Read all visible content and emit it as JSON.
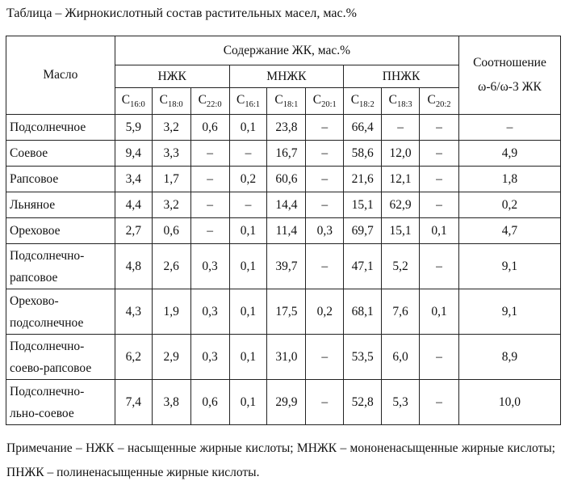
{
  "title": "Таблица – Жирнокислотный состав растительных масел, мас.%",
  "header": {
    "oil": "Масло",
    "content": "Содержание ЖК, мас.%",
    "ratio": "Соотношение ω-6/ω-3 ЖК",
    "groups": [
      "НЖК",
      "МНЖК",
      "ПНЖК"
    ],
    "acids": [
      {
        "c": "C",
        "sub": "16:0"
      },
      {
        "c": "C",
        "sub": "18:0"
      },
      {
        "c": "C",
        "sub": "22:0"
      },
      {
        "c": "C",
        "sub": "16:1"
      },
      {
        "c": "C",
        "sub": "18:1"
      },
      {
        "c": "C",
        "sub": "20:1"
      },
      {
        "c": "C",
        "sub": "18:2"
      },
      {
        "c": "C",
        "sub": "18:3"
      },
      {
        "c": "C",
        "sub": "20:2"
      }
    ]
  },
  "rows": [
    {
      "name": "Подсолнечное",
      "v": [
        "5,9",
        "3,2",
        "0,6",
        "0,1",
        "23,8",
        "–",
        "66,4",
        "–",
        "–",
        "–"
      ]
    },
    {
      "name": "Соевое",
      "v": [
        "9,4",
        "3,3",
        "–",
        "–",
        "16,7",
        "–",
        "58,6",
        "12,0",
        "–",
        "4,9"
      ]
    },
    {
      "name": "Рапсовое",
      "v": [
        "3,4",
        "1,7",
        "–",
        "0,2",
        "60,6",
        "–",
        "21,6",
        "12,1",
        "–",
        "1,8"
      ]
    },
    {
      "name": "Льняное",
      "v": [
        "4,4",
        "3,2",
        "–",
        "–",
        "14,4",
        "–",
        "15,1",
        "62,9",
        "–",
        "0,2"
      ]
    },
    {
      "name": "Ореховое",
      "v": [
        "2,7",
        "0,6",
        "–",
        "0,1",
        "11,4",
        "0,3",
        "69,7",
        "15,1",
        "0,1",
        "4,7"
      ]
    },
    {
      "name": "Подсолнечно-рапсовое",
      "v": [
        "4,8",
        "2,6",
        "0,3",
        "0,1",
        "39,7",
        "–",
        "47,1",
        "5,2",
        "–",
        "9,1"
      ]
    },
    {
      "name": "Орехово-подсолнечное",
      "v": [
        "4,3",
        "1,9",
        "0,3",
        "0,1",
        "17,5",
        "0,2",
        "68,1",
        "7,6",
        "0,1",
        "9,1"
      ]
    },
    {
      "name": "Подсолнечно-соево-рапсовое",
      "v": [
        "6,2",
        "2,9",
        "0,3",
        "0,1",
        "31,0",
        "–",
        "53,5",
        "6,0",
        "–",
        "8,9"
      ]
    },
    {
      "name": "Подсолнечно-льно-соевое",
      "v": [
        "7,4",
        "3,8",
        "0,6",
        "0,1",
        "29,9",
        "–",
        "52,8",
        "5,3",
        "–",
        "10,0"
      ]
    }
  ],
  "note": "Примечание – НЖК – насыщенные жирные кислоты; МНЖК – мононенасыщенные жирные кислоты; ПНЖК – полиненасыщенные жирные кислоты."
}
